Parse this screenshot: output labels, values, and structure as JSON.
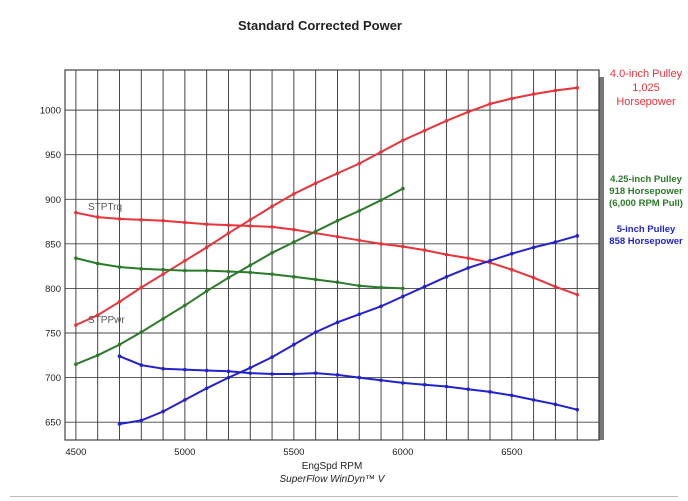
{
  "chart_data": {
    "type": "line",
    "title": "Standard Corrected Power",
    "xlabel": "EngSpd RPM",
    "footer": "SuperFlow WinDyn™ V",
    "xlim": [
      4450,
      6900
    ],
    "ylim": [
      630,
      1045
    ],
    "xticks": [
      4500,
      5000,
      5500,
      6000,
      6500
    ],
    "yticks": [
      650,
      700,
      750,
      800,
      850,
      900,
      950,
      1000
    ],
    "grid": true,
    "curve_labels": {
      "torque": "STPTrq",
      "power": "STPPwr"
    },
    "series": [
      {
        "color": "#e8333a",
        "power": {
          "x": [
            4500,
            4600,
            4700,
            4800,
            4900,
            5000,
            5100,
            5200,
            5300,
            5400,
            5500,
            5600,
            5700,
            5800,
            5900,
            6000,
            6100,
            6200,
            6300,
            6400,
            6500,
            6600,
            6700,
            6800
          ],
          "y": [
            759,
            770,
            785,
            801,
            816,
            831,
            846,
            862,
            877,
            892,
            906,
            918,
            929,
            940,
            953,
            966,
            977,
            988,
            998,
            1007,
            1013,
            1018,
            1022,
            1025
          ]
        },
        "torque": {
          "x": [
            4500,
            4600,
            4700,
            4800,
            4900,
            5000,
            5100,
            5200,
            5300,
            5400,
            5500,
            5600,
            5700,
            5800,
            5900,
            6000,
            6100,
            6200,
            6300,
            6400,
            6500,
            6600,
            6700,
            6800
          ],
          "y": [
            885,
            880,
            878,
            877,
            876,
            874,
            872,
            871,
            870,
            869,
            866,
            862,
            858,
            854,
            850,
            847,
            843,
            838,
            834,
            829,
            821,
            812,
            802,
            793
          ]
        }
      },
      {
        "color": "#2a7a2a",
        "power": {
          "x": [
            4500,
            4600,
            4700,
            4800,
            4900,
            5000,
            5100,
            5200,
            5300,
            5400,
            5500,
            5600,
            5700,
            5800,
            5900,
            6000
          ],
          "y": [
            715,
            725,
            737,
            751,
            766,
            781,
            797,
            812,
            826,
            840,
            852,
            864,
            876,
            887,
            899,
            912
          ]
        },
        "torque": {
          "x": [
            4500,
            4600,
            4700,
            4800,
            4900,
            5000,
            5100,
            5200,
            5300,
            5400,
            5500,
            5600,
            5700,
            5800,
            5900,
            6000
          ],
          "y": [
            834,
            828,
            824,
            822,
            821,
            820,
            820,
            819,
            818,
            816,
            813,
            810,
            807,
            803,
            801,
            800
          ]
        }
      },
      {
        "color": "#2222cc",
        "power": {
          "x": [
            4700,
            4800,
            4900,
            5000,
            5100,
            5200,
            5300,
            5400,
            5500,
            5600,
            5700,
            5800,
            5900,
            6000,
            6100,
            6200,
            6300,
            6400,
            6500,
            6600,
            6700,
            6800
          ],
          "y": [
            648,
            652,
            662,
            675,
            688,
            700,
            711,
            723,
            737,
            751,
            762,
            771,
            780,
            791,
            802,
            813,
            823,
            831,
            839,
            846,
            852,
            859
          ]
        },
        "torque": {
          "x": [
            4700,
            4800,
            4900,
            5000,
            5100,
            5200,
            5300,
            5400,
            5500,
            5600,
            5700,
            5800,
            5900,
            6000,
            6100,
            6200,
            6300,
            6400,
            6500,
            6600,
            6700,
            6800
          ],
          "y": [
            724,
            714,
            710,
            709,
            708,
            707,
            705,
            704,
            704,
            705,
            703,
            700,
            697,
            694,
            692,
            690,
            687,
            684,
            680,
            675,
            670,
            664
          ]
        }
      }
    ],
    "annotations": [
      {
        "id": "red",
        "lines": [
          "4.0-inch Pulley",
          "1,025",
          "Horsepower"
        ]
      },
      {
        "id": "green",
        "lines": [
          "4.25-inch Pulley",
          "918 Horsepower",
          "(6,000 RPM Pull)"
        ]
      },
      {
        "id": "blue",
        "lines": [
          "5-inch Pulley",
          "858 Horsepower"
        ]
      }
    ]
  }
}
